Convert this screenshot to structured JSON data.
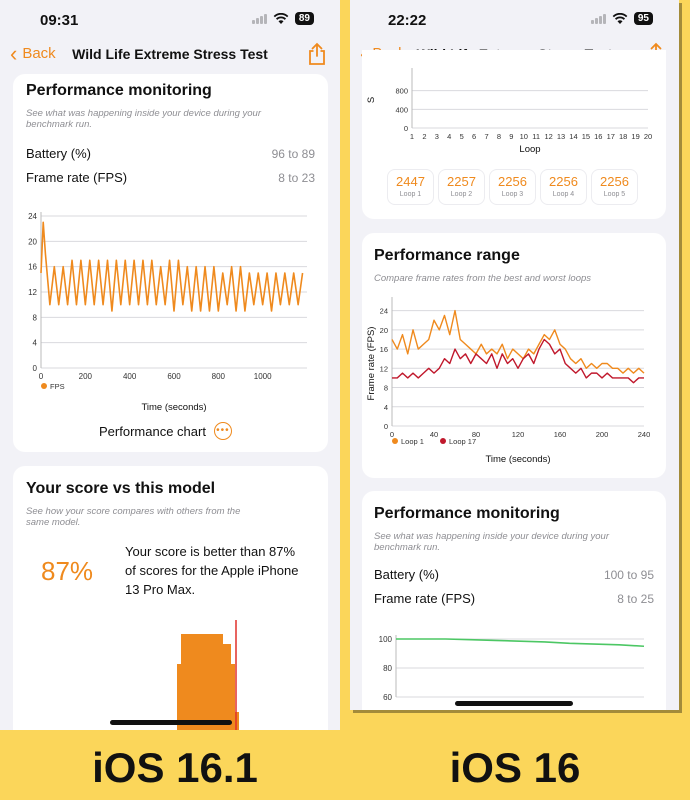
{
  "left": {
    "status": {
      "time": "09:31",
      "battery": "89"
    },
    "nav": {
      "back": "Back",
      "title": "Wild Life Extreme Stress Test"
    },
    "monitoring": {
      "title": "Performance monitoring",
      "subtitle_l1": "See what was happening inside your device during your",
      "subtitle_l2": "benchmark run.",
      "battery_label": "Battery (%)",
      "battery_value": "96 to 89",
      "fps_label": "Frame rate (FPS)",
      "fps_value": "8 to 23",
      "link": "Performance chart"
    },
    "score": {
      "title": "Your score vs this model",
      "subtitle_l1": "See how your score compares with others from the",
      "subtitle_l2": "same model.",
      "percent": "87%",
      "text_l1": "Your score is better than 87%",
      "text_l2": "of scores for the Apple iPhone",
      "text_l3": "13 Pro Max."
    }
  },
  "right": {
    "status": {
      "time": "22:22",
      "battery": "95"
    },
    "nav": {
      "back": "Back",
      "title": "Wild Life Extreme Stress Test"
    },
    "range": {
      "title": "Performance range",
      "subtitle": "Compare frame rates from the best and worst loops"
    },
    "monitoring": {
      "title": "Performance monitoring",
      "subtitle_l1": "See what was happening inside your device during your",
      "subtitle_l2": "benchmark run.",
      "battery_label": "Battery (%)",
      "battery_value": "100 to 95",
      "fps_label": "Frame rate (FPS)",
      "fps_value": "8 to 25"
    },
    "loops": [
      {
        "value": "2447",
        "label": "Loop 1"
      },
      {
        "value": "2257",
        "label": "Loop 2"
      },
      {
        "value": "2256",
        "label": "Loop 3"
      },
      {
        "value": "2256",
        "label": "Loop 4"
      },
      {
        "value": "2256",
        "label": "Loop 5"
      }
    ]
  },
  "captions": {
    "left": "iOS 16.1",
    "right": "iOS 16"
  },
  "colors": {
    "accent": "#ef8a1e",
    "loop17": "#c0182c",
    "battery_line": "#4cc764"
  },
  "chart_data": [
    {
      "id": "left-fps",
      "type": "line",
      "xlabel": "Time (seconds)",
      "ylabel": "",
      "xlim": [
        0,
        1200
      ],
      "ylim": [
        0,
        24
      ],
      "xticks": [
        0,
        200,
        400,
        600,
        800,
        1000
      ],
      "yticks": [
        0,
        4,
        8,
        12,
        16,
        20,
        24
      ],
      "legend": "bottom-left",
      "series": [
        {
          "name": "FPS",
          "color": "#ef8a1e",
          "x": [
            0,
            10,
            20,
            40,
            60,
            80,
            100,
            120,
            140,
            160,
            180,
            200,
            220,
            240,
            260,
            280,
            300,
            320,
            340,
            360,
            380,
            400,
            420,
            440,
            460,
            480,
            500,
            520,
            540,
            560,
            580,
            600,
            620,
            640,
            660,
            680,
            700,
            720,
            740,
            760,
            780,
            800,
            820,
            840,
            860,
            880,
            900,
            920,
            940,
            960,
            980,
            1000,
            1020,
            1040,
            1060,
            1080,
            1100,
            1120,
            1140,
            1160,
            1180
          ],
          "y": [
            15,
            23,
            18,
            10,
            16,
            10,
            16,
            10,
            17,
            10,
            17,
            10,
            17,
            10,
            17,
            10,
            17,
            9,
            17,
            10,
            17,
            10,
            17,
            10,
            17,
            10,
            17,
            10,
            16,
            10,
            17,
            9,
            17,
            10,
            16,
            9,
            16,
            9,
            16,
            9,
            16,
            9,
            15,
            10,
            16,
            9,
            16,
            9,
            15,
            10,
            15,
            10,
            15,
            9,
            15,
            10,
            15,
            10,
            15,
            10,
            15
          ]
        }
      ]
    },
    {
      "id": "right-loop-top",
      "type": "line",
      "xlabel": "Loop",
      "ylabel": "S",
      "xlim": [
        1,
        20
      ],
      "ylim": [
        0,
        1200
      ],
      "xticks": [
        1,
        2,
        3,
        4,
        5,
        6,
        7,
        8,
        9,
        10,
        11,
        12,
        13,
        14,
        15,
        16,
        17,
        18,
        19,
        20
      ],
      "yticks": [
        0,
        400,
        800
      ],
      "series": []
    },
    {
      "id": "right-range",
      "type": "line",
      "xlabel": "Time (seconds)",
      "ylabel": "Frame rate (FPS)",
      "xlim": [
        0,
        240
      ],
      "ylim": [
        0,
        26
      ],
      "xticks": [
        0,
        40,
        80,
        120,
        160,
        200,
        240
      ],
      "yticks": [
        0,
        4,
        8,
        12,
        16,
        20,
        24
      ],
      "legend": "bottom-left",
      "series": [
        {
          "name": "Loop 1",
          "color": "#ef8a1e",
          "x": [
            0,
            5,
            10,
            15,
            20,
            25,
            30,
            35,
            40,
            45,
            50,
            55,
            60,
            65,
            70,
            75,
            80,
            85,
            90,
            95,
            100,
            105,
            110,
            115,
            120,
            125,
            130,
            135,
            140,
            145,
            150,
            155,
            160,
            165,
            170,
            175,
            180,
            185,
            190,
            195,
            200,
            205,
            210,
            215,
            220,
            225,
            230,
            235,
            240
          ],
          "y": [
            18,
            16,
            19,
            15,
            20,
            16,
            17,
            18,
            22,
            20,
            23,
            19,
            24,
            18,
            17,
            16,
            15,
            17,
            15,
            16,
            15,
            17,
            14,
            16,
            15,
            14,
            16,
            15,
            17,
            19,
            18,
            20,
            17,
            16,
            14,
            13,
            14,
            12,
            13,
            12,
            13,
            13,
            12,
            12,
            11,
            12,
            11,
            12,
            11
          ]
        },
        {
          "name": "Loop 17",
          "color": "#c0182c",
          "x": [
            0,
            5,
            10,
            15,
            20,
            25,
            30,
            35,
            40,
            45,
            50,
            55,
            60,
            65,
            70,
            75,
            80,
            85,
            90,
            95,
            100,
            105,
            110,
            115,
            120,
            125,
            130,
            135,
            140,
            145,
            150,
            155,
            160,
            165,
            170,
            175,
            180,
            185,
            190,
            195,
            200,
            205,
            210,
            215,
            220,
            225,
            230,
            235,
            240
          ],
          "y": [
            10,
            10,
            11,
            10,
            11,
            10,
            11,
            12,
            11,
            12,
            14,
            13,
            16,
            14,
            15,
            13,
            15,
            14,
            13,
            15,
            12,
            15,
            13,
            14,
            12,
            14,
            15,
            13,
            16,
            18,
            17,
            15,
            16,
            13,
            12,
            11,
            12,
            10,
            11,
            11,
            10,
            11,
            10,
            10,
            10,
            10,
            9,
            10,
            10
          ]
        }
      ]
    },
    {
      "id": "right-battery",
      "type": "line",
      "xlabel": "",
      "ylabel": "",
      "ylim": [
        60,
        100
      ],
      "yticks": [
        60,
        80,
        100
      ],
      "series": [
        {
          "name": "",
          "color": "#4cc764",
          "x": [
            0,
            10,
            20,
            30,
            40,
            50,
            60,
            70,
            80,
            90,
            100
          ],
          "y": [
            100,
            100,
            100,
            99.5,
            99,
            98.5,
            98,
            97,
            96.5,
            96,
            95
          ]
        }
      ]
    }
  ]
}
